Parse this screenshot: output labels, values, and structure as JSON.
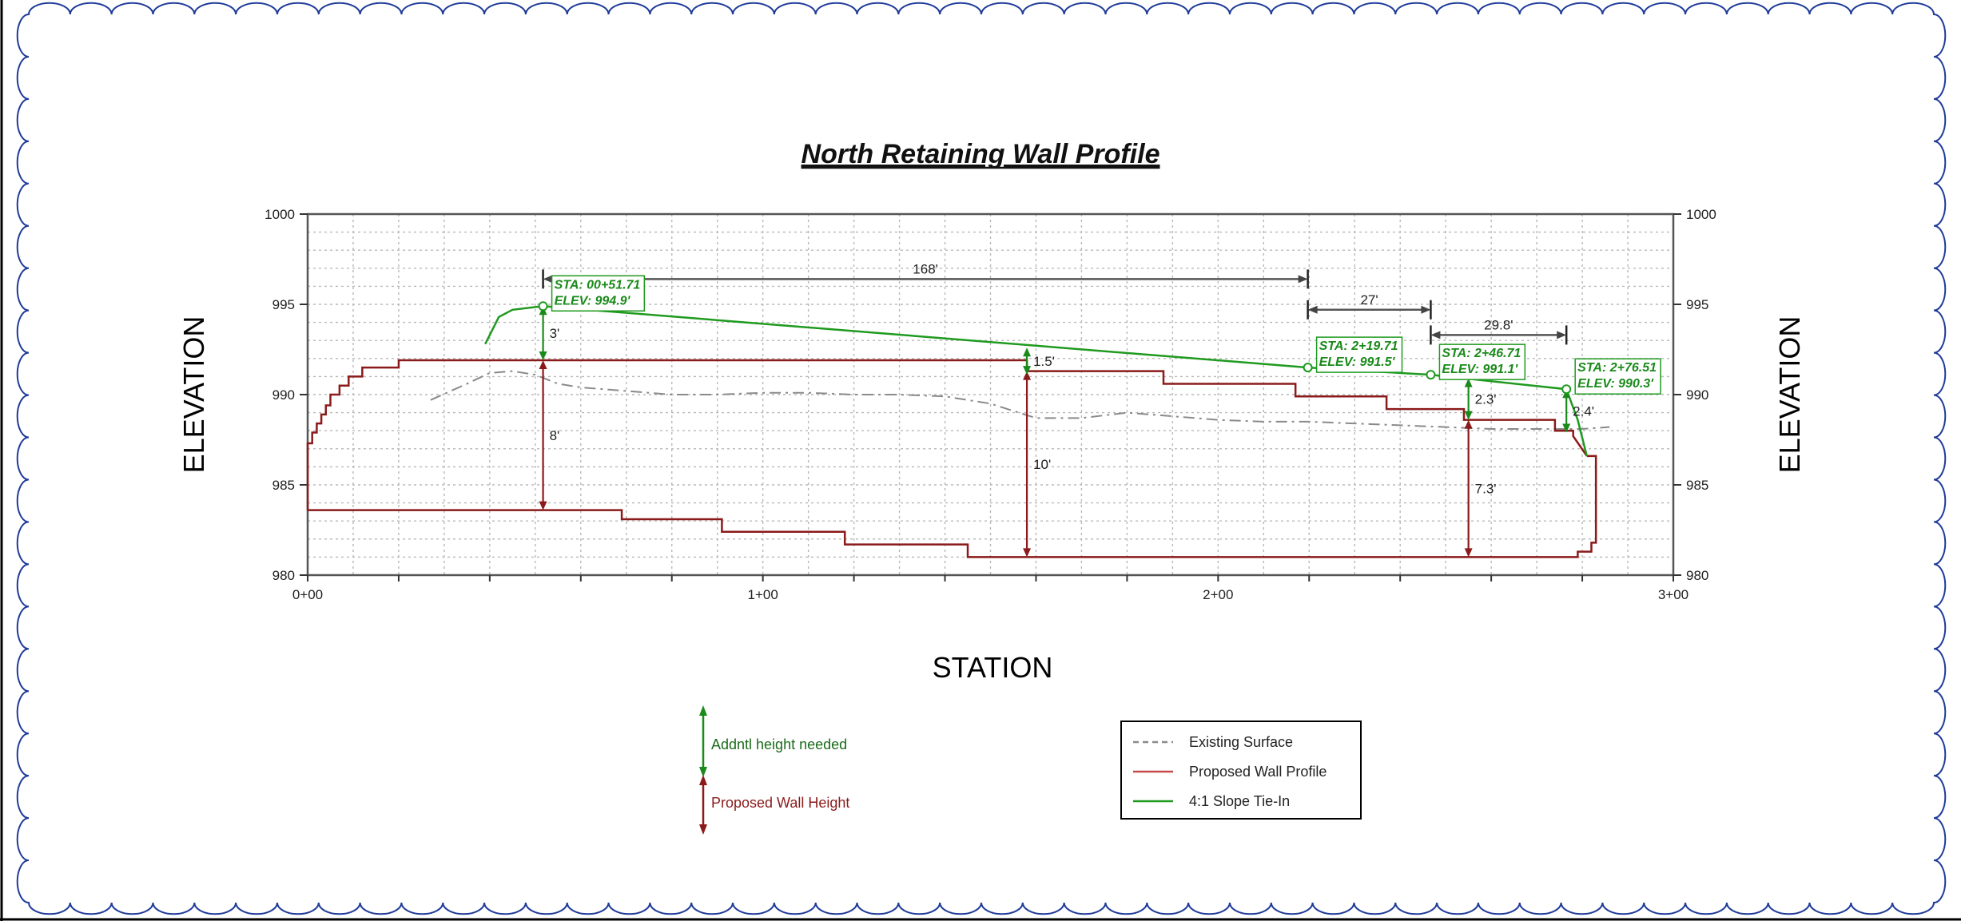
{
  "chart_data": {
    "type": "line",
    "title": "North Retaining Wall Profile",
    "xlabel": "STATION",
    "ylabel": "ELEVATION",
    "ylabel_right": "ELEVATION",
    "xlim": [
      0,
      300
    ],
    "ylim": [
      980,
      1000
    ],
    "x_ticks": [
      {
        "value": 0,
        "label": "0+00"
      },
      {
        "value": 100,
        "label": "1+00"
      },
      {
        "value": 200,
        "label": "2+00"
      },
      {
        "value": 300,
        "label": "3+00"
      }
    ],
    "y_ticks": [
      {
        "value": 980,
        "label": "980"
      },
      {
        "value": 985,
        "label": "985"
      },
      {
        "value": 990,
        "label": "990"
      },
      {
        "value": 995,
        "label": "995"
      },
      {
        "value": 1000,
        "label": "1000"
      }
    ],
    "grid": true,
    "series": [
      {
        "name": "Existing Surface",
        "color": "#8a8a8a",
        "style": "dashed",
        "x": [
          27,
          35,
          40,
          45,
          50,
          55,
          60,
          70,
          80,
          90,
          100,
          110,
          120,
          130,
          140,
          150,
          160,
          170,
          180,
          190,
          200,
          210,
          220,
          230,
          240,
          250,
          260,
          270,
          280,
          286
        ],
        "y": [
          989.7,
          990.6,
          991.2,
          991.3,
          991.1,
          990.6,
          990.4,
          990.2,
          990.0,
          990.0,
          990.1,
          990.1,
          990.0,
          990.0,
          989.9,
          989.5,
          988.7,
          988.7,
          989.0,
          988.8,
          988.6,
          988.5,
          988.5,
          988.4,
          988.3,
          988.2,
          988.1,
          988.1,
          988.1,
          988.2
        ]
      },
      {
        "name": "Proposed Wall Profile",
        "color": "#8b1a1a",
        "style": "solid",
        "top_x": [
          0,
          0,
          1,
          1,
          2,
          2,
          3,
          3,
          4,
          4,
          5,
          5,
          7,
          7,
          9,
          9,
          12,
          12,
          20,
          20,
          158,
          158,
          188,
          188,
          217,
          217,
          237,
          237,
          254,
          254,
          274,
          274,
          278,
          278,
          281
        ],
        "top_y": [
          983.6,
          987.3,
          987.3,
          987.9,
          987.9,
          988.4,
          988.4,
          988.9,
          988.9,
          989.4,
          989.4,
          990.0,
          990.0,
          990.5,
          990.5,
          991.0,
          991.0,
          991.5,
          991.5,
          991.9,
          991.9,
          991.3,
          991.3,
          990.6,
          990.6,
          989.9,
          989.9,
          989.2,
          989.2,
          988.6,
          988.6,
          988.0,
          988.0,
          987.7,
          986.6
        ],
        "bottom_x": [
          0,
          69,
          69,
          91,
          91,
          118,
          118,
          145,
          145,
          274,
          274,
          279,
          279,
          282,
          282,
          283,
          283,
          281
        ],
        "bottom_y": [
          983.6,
          983.6,
          983.1,
          983.1,
          982.4,
          982.4,
          981.7,
          981.7,
          981.0,
          981.0,
          981.0,
          981.0,
          981.3,
          981.3,
          981.8,
          981.8,
          986.6,
          986.6
        ]
      },
      {
        "name": "4:1 Slope Tie-In",
        "color": "#1f9a1f",
        "style": "solid",
        "x": [
          39,
          42,
          45,
          51.71,
          219.71,
          246.71,
          276.51,
          279,
          281
        ],
        "y": [
          992.8,
          994.3,
          994.7,
          994.9,
          991.5,
          991.1,
          990.3,
          988.6,
          986.6
        ]
      }
    ],
    "callouts": [
      {
        "line1": "STA: 00+51.71",
        "line2": "ELEV: 994.9'",
        "x": 51.71,
        "y": 994.9
      },
      {
        "line1": "STA: 2+19.71",
        "line2": "ELEV: 991.5'",
        "x": 219.71,
        "y": 991.5
      },
      {
        "line1": "STA: 2+46.71",
        "line2": "ELEV: 991.1'",
        "x": 246.71,
        "y": 991.1
      },
      {
        "line1": "STA: 2+76.51",
        "line2": "ELEV: 990.3'",
        "x": 276.51,
        "y": 990.3
      }
    ],
    "horizontal_dimensions": [
      {
        "label": "168'",
        "x1": 51.71,
        "x2": 219.71,
        "y": 996.4
      },
      {
        "label": "27'",
        "x1": 219.71,
        "x2": 246.71,
        "y": 994.7
      },
      {
        "label": "29.8'",
        "x1": 246.71,
        "x2": 276.51,
        "y": 993.3
      }
    ],
    "additional_height": [
      {
        "label": "3'",
        "x": 51.71,
        "y_top": 994.9,
        "y_bottom": 991.9
      },
      {
        "label": "1.5'",
        "x": 158,
        "y_top": 992.6,
        "y_bottom": 991.1
      },
      {
        "label": "2.3'",
        "x": 255,
        "y_top": 990.9,
        "y_bottom": 988.6
      },
      {
        "label": "2.4'",
        "x": 276.51,
        "y_top": 990.3,
        "y_bottom": 987.9
      }
    ],
    "wall_height": [
      {
        "label": "8'",
        "x": 51.71,
        "y_top": 991.9,
        "y_bottom": 983.6
      },
      {
        "label": "10'",
        "x": 158,
        "y_top": 991.3,
        "y_bottom": 981.0
      },
      {
        "label": "7.3'",
        "x": 255,
        "y_top": 988.6,
        "y_bottom": 981.0
      }
    ]
  },
  "symbol_legend": {
    "addntl": "Addntl height needed",
    "wall_height": "Proposed Wall Height",
    "addntl_color": "#1a8a1a",
    "wall_color": "#8b1a1a"
  },
  "legend": {
    "items": [
      {
        "label": "Existing Surface",
        "color": "#8a8a8a",
        "style": "dashed"
      },
      {
        "label": "Proposed Wall Profile",
        "color": "#c84a4a",
        "style": "solid"
      },
      {
        "label": "4:1 Slope Tie-In",
        "color": "#1f9a1f",
        "style": "solid"
      }
    ]
  }
}
